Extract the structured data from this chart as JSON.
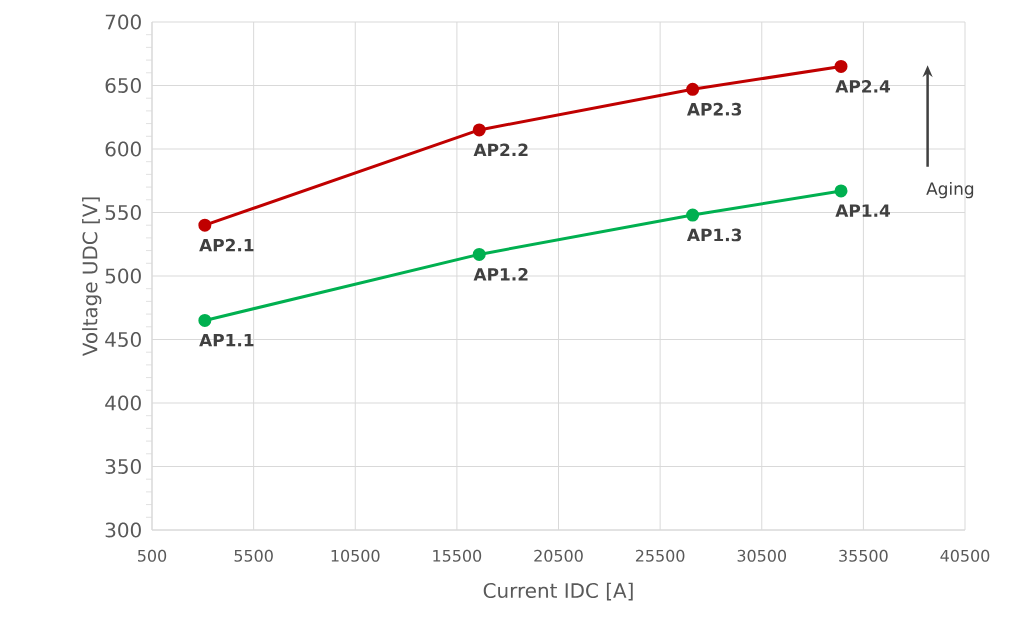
{
  "chart_data": {
    "type": "line",
    "xlabel": "Current IDC [A]",
    "ylabel": "Voltage UDC [V]",
    "xlim": [
      500,
      40500
    ],
    "xticks": [
      500,
      5500,
      10500,
      15500,
      20500,
      25500,
      30500,
      35500,
      40500
    ],
    "ylim": [
      300,
      700
    ],
    "yticks": [
      300,
      350,
      400,
      450,
      500,
      550,
      600,
      650,
      700
    ],
    "grid": true,
    "marker": "circle",
    "line_style": "solid",
    "series": [
      {
        "color": "#c00000",
        "x": [
          3100,
          16600,
          27100,
          34400
        ],
        "values": [
          540,
          615,
          647,
          665
        ]
      },
      {
        "color": "#00b050",
        "x": [
          3100,
          16600,
          27100,
          34400
        ],
        "values": [
          465,
          517,
          548,
          567
        ]
      }
    ],
    "annotations": [
      {
        "text": "AP2.1",
        "x": 3100,
        "y": 540
      },
      {
        "text": "AP2.2",
        "x": 16600,
        "y": 615
      },
      {
        "text": "AP2.3",
        "x": 27100,
        "y": 647
      },
      {
        "text": "AP2.4",
        "x": 34400,
        "y": 665
      },
      {
        "text": "AP1.1",
        "x": 3100,
        "y": 465
      },
      {
        "text": "AP1.2",
        "x": 16600,
        "y": 517
      },
      {
        "text": "AP1.3",
        "x": 27100,
        "y": 548
      },
      {
        "text": "AP1.4",
        "x": 34400,
        "y": 567
      },
      "Aging"
    ]
  }
}
